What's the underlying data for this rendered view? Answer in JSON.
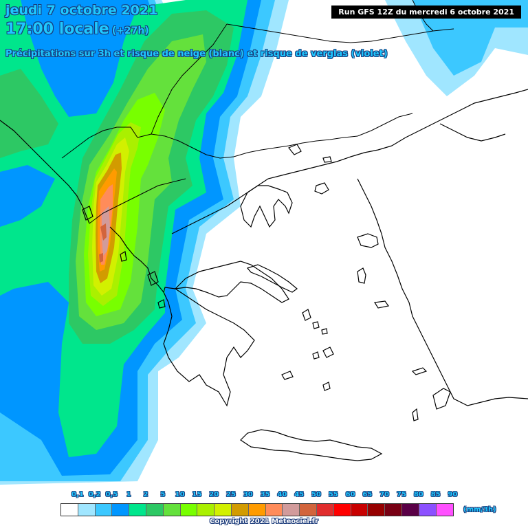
{
  "header": {
    "date": "jeudi 7 octobre 2021",
    "time": "17:00 locale",
    "offset": "(+27h)",
    "subtitle": "Précipitations sur 3h et risque de neige (blanc) et risque de verglas (violet)"
  },
  "run_label": "Run GFS 12Z du mercredi 6 octobre 2021",
  "legend": {
    "ticks": [
      "0,1",
      "0,2",
      "0,5",
      "1",
      "2",
      "5",
      "10",
      "15",
      "20",
      "25",
      "30",
      "35",
      "40",
      "45",
      "50",
      "55",
      "60",
      "65",
      "70",
      "75",
      "80",
      "85",
      "90"
    ],
    "colors": [
      "#ffffff",
      "#a0e6ff",
      "#3cc8ff",
      "#0096ff",
      "#00e68c",
      "#2dc864",
      "#64e13c",
      "#78ff00",
      "#aaf000",
      "#d2f000",
      "#d29b00",
      "#ff9b00",
      "#ff8c5a",
      "#d29b9b",
      "#d2643c",
      "#e12d2d",
      "#ff0000",
      "#c80000",
      "#960000",
      "#780014",
      "#5a0046",
      "#8c50ff",
      "#ff50ff"
    ],
    "unit": "(mm/3h)"
  },
  "copyright": "Copyright 2021 Meteociel.fr",
  "colors": {
    "label_text": "#1ec8ff",
    "label_outline": "#1a3a7a",
    "coastline": "#000000"
  }
}
